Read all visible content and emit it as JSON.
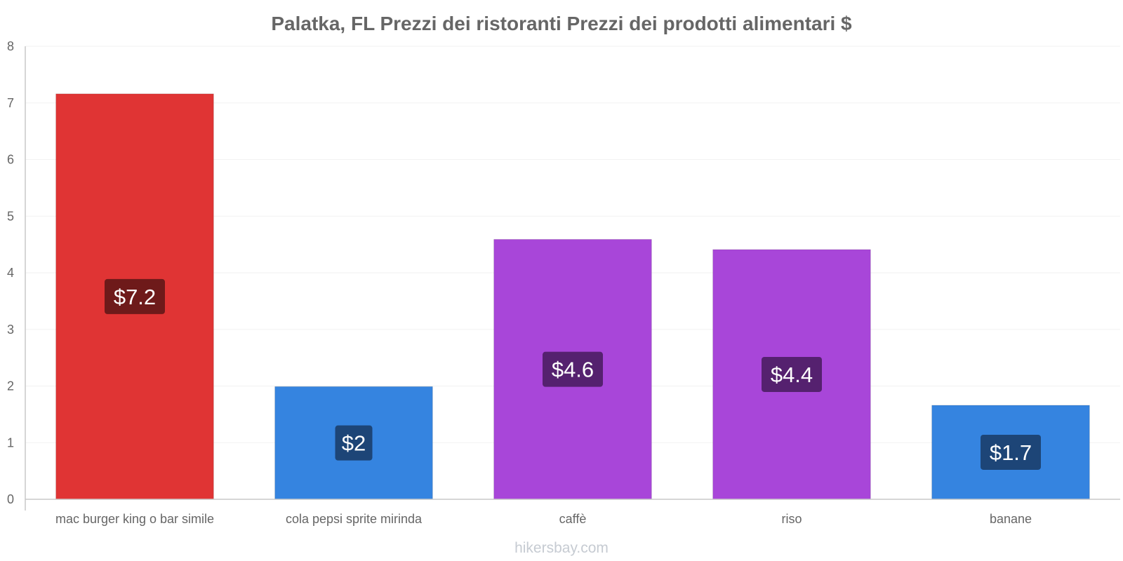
{
  "chart_data": {
    "type": "bar",
    "title": "Palatka, FL Prezzi dei ristoranti Prezzi dei prodotti alimentari $",
    "categories": [
      "mac burger king o bar simile",
      "cola pepsi sprite mirinda",
      "caffè",
      "riso",
      "banane"
    ],
    "values": [
      7.16,
      1.99,
      4.59,
      4.41,
      1.66
    ],
    "value_labels": [
      "$7.2",
      "$2",
      "$4.6",
      "$4.4",
      "$1.7"
    ],
    "bar_colors": [
      "#e03434",
      "#3584e0",
      "#a846d9",
      "#a846d9",
      "#3584e0"
    ],
    "label_bg_colors": [
      "#6e1a1a",
      "#1d4577",
      "#55216f",
      "#55216f",
      "#1d4577"
    ],
    "ylim": [
      0,
      8
    ],
    "yticks": [
      "0",
      "1",
      "2",
      "3",
      "4",
      "5",
      "6",
      "7",
      "8"
    ],
    "xlabel": "",
    "ylabel": "",
    "grid": true,
    "credit": "hikersbay.com"
  }
}
